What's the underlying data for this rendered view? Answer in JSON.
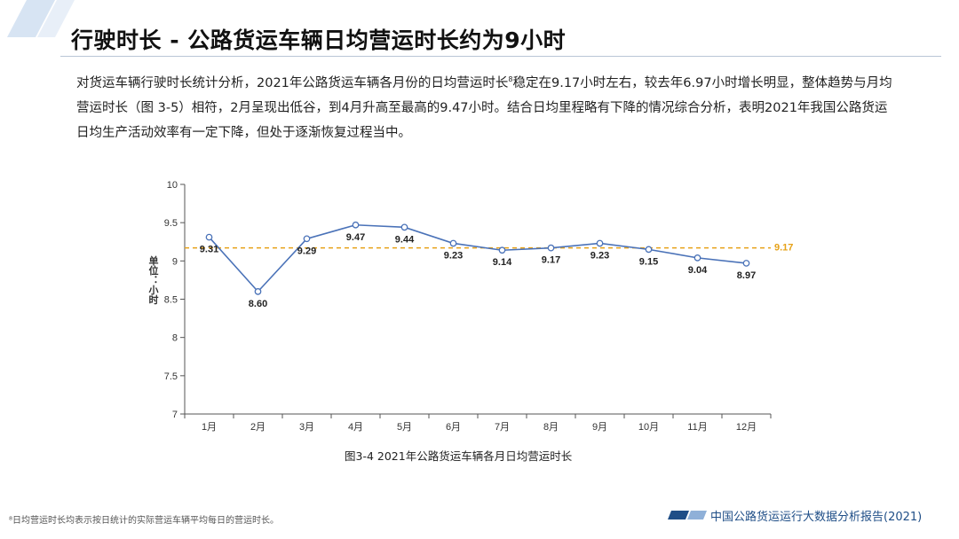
{
  "page": {
    "title": "行驶时长 - 公路货运车辆日均营运时长约为9小时",
    "paragraph_part1": "对货运车辆行驶时长统计分析，2021年公路货运车辆各月份的日均营运时长",
    "paragraph_marker": "8",
    "paragraph_part2": "稳定在9.17小时左右，较去年6.97小时增长明显，整体趋势与月均营运时长（图 3-5）相符，2月呈现出低谷，到4月升高至最高的9.47小时。结合日均里程略有下降的情况综合分析，表明2021年我国公路货运日均生产活动效率有一定下降，但处于逐渐恢复过程当中。",
    "caption": "图3-4 2021年公路货运车辆各月日均营运时长",
    "footnote": "⁸日均营运时长均表示按日统计的实际营运车辆平均每日的营运时长。",
    "footer_text": "中国公路货运运行大数据分析报告(2021)",
    "colors": {
      "accent": "#1f4e87",
      "line": "#4a72b8",
      "reference": "#e6a117",
      "marker_fill": "#ffffff"
    }
  },
  "chart_data": {
    "type": "line",
    "categories": [
      "1月",
      "2月",
      "3月",
      "4月",
      "5月",
      "6月",
      "7月",
      "8月",
      "9月",
      "10月",
      "11月",
      "12月"
    ],
    "series": [
      {
        "values": [
          9.31,
          8.6,
          9.29,
          9.47,
          9.44,
          9.23,
          9.14,
          9.17,
          9.23,
          9.15,
          9.04,
          8.97
        ]
      }
    ],
    "data_labels": [
      "9.31",
      "8.60",
      "9.29",
      "9.47",
      "9.44",
      "9.23",
      "9.14",
      "9.17",
      "9.23",
      "9.15",
      "9.04",
      "8.97"
    ],
    "reference_line": {
      "value": 9.17,
      "label": "9.17"
    },
    "y_ticks": [
      7,
      7.5,
      8,
      8.5,
      9,
      9.5,
      10
    ],
    "y_tick_labels": [
      "7",
      "7.5",
      "8",
      "8.5",
      "9",
      "9.5",
      "10"
    ],
    "ylim": [
      7,
      10
    ],
    "ylabel": "单位：小时",
    "grid": false,
    "legend": "none"
  }
}
